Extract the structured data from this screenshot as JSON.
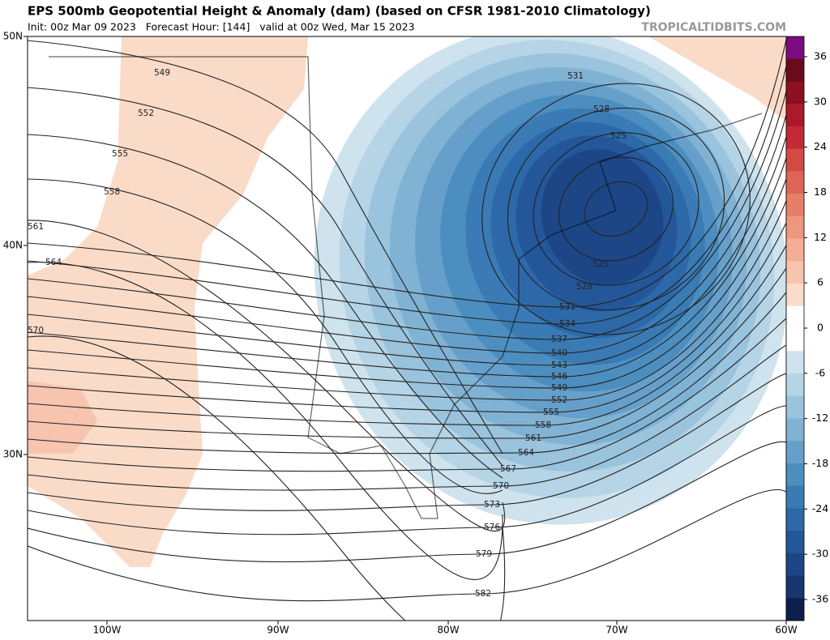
{
  "header": {
    "title": "EPS 500mb Geopotential Height & Anomaly (dam) (based on CFSR 1981-2010 Climatology)",
    "subtitle": "Init: 00z Mar 09 2023   Forecast Hour: [144]   valid at 00z Wed, Mar 15 2023",
    "watermark": "TROPICALTIDBITS.COM"
  },
  "map": {
    "lat_labels": [
      "50N",
      "40N",
      "30N"
    ],
    "lon_labels": [
      "100W",
      "90W",
      "80W",
      "70W",
      "60W"
    ],
    "contour_labels": [
      549,
      552,
      555,
      558,
      561,
      564,
      570,
      531,
      528,
      525,
      525,
      528,
      531,
      534,
      537,
      540,
      543,
      546,
      549,
      552,
      555,
      558,
      561,
      564,
      567,
      570,
      573,
      576,
      579,
      582
    ]
  },
  "colorbar": {
    "ticks": [
      36,
      30,
      24,
      18,
      12,
      6,
      0,
      -6,
      -12,
      -18,
      -24,
      -30,
      -36
    ]
  }
}
